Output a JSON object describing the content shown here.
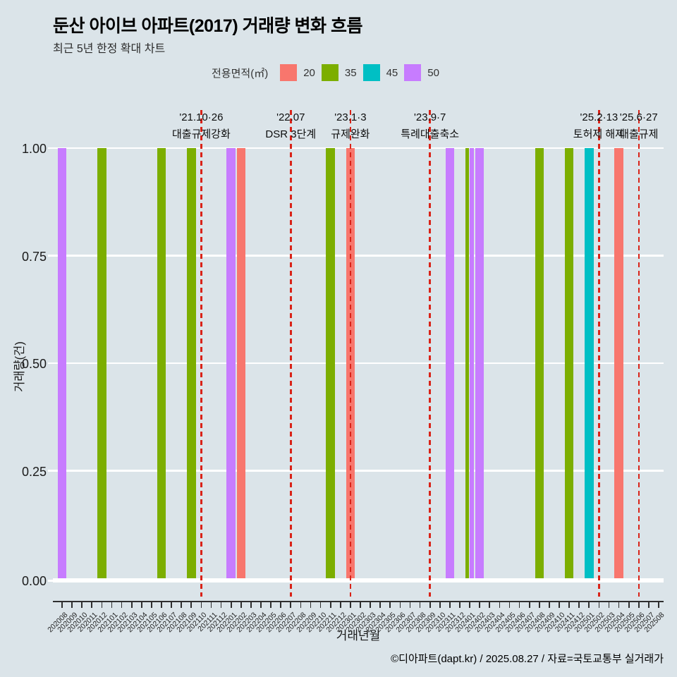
{
  "header": {
    "title": "둔산 아이브 아파트(2017) 거래량 변화 흐름",
    "subtitle": "최근 5년 한정 확대 차트"
  },
  "legend": {
    "title": "전용면적(㎡)",
    "entries": [
      {
        "label": "20",
        "color": "#F8766D"
      },
      {
        "label": "35",
        "color": "#7CAE00"
      },
      {
        "label": "45",
        "color": "#00BFC4"
      },
      {
        "label": "50",
        "color": "#C77CFF"
      }
    ]
  },
  "axes": {
    "xlabel": "거래년월",
    "ylabel": "거래량(건)"
  },
  "footer": {
    "credit": "©디아파트(dapt.kr) / 2025.08.27 / 자료=국토교통부 실거래가"
  },
  "chart_data": {
    "type": "bar",
    "title": "둔산 아이브 아파트(2017) 거래량 변화 흐름",
    "subtitle": "최근 5년 한정 확대 차트",
    "xlabel": "거래년월",
    "ylabel": "거래량(건)",
    "ylim": [
      0,
      1
    ],
    "yticks": [
      "0.00",
      "0.25",
      "0.50",
      "0.75",
      "1.00"
    ],
    "grid": "horizontal-white-major",
    "legend_position": "top",
    "categories": [
      "202008",
      "202009",
      "202010",
      "202011",
      "202012",
      "202101",
      "202102",
      "202103",
      "202104",
      "202105",
      "202106",
      "202107",
      "202108",
      "202109",
      "202110",
      "202111",
      "202112",
      "202201",
      "202202",
      "202203",
      "202204",
      "202205",
      "202206",
      "202207",
      "202208",
      "202209",
      "202210",
      "202211",
      "202212",
      "202301",
      "202302",
      "202303",
      "202304",
      "202305",
      "202306",
      "202307",
      "202308",
      "202309",
      "202310",
      "202311",
      "202312",
      "202401",
      "202402",
      "202403",
      "202404",
      "202405",
      "202406",
      "202407",
      "202408",
      "202409",
      "202410",
      "202411",
      "202412",
      "202501",
      "202502",
      "202503",
      "202504",
      "202505",
      "202506",
      "202507",
      "202508"
    ],
    "bars": [
      {
        "month": "202008",
        "area": "50",
        "value": 1
      },
      {
        "month": "202012",
        "area": "35",
        "value": 1
      },
      {
        "month": "202106",
        "area": "35",
        "value": 1
      },
      {
        "month": "202109",
        "area": "35",
        "value": 1
      },
      {
        "month": "202201",
        "area": "50",
        "value": 1
      },
      {
        "month": "202202",
        "area": "20",
        "value": 1
      },
      {
        "month": "202211",
        "area": "35",
        "value": 1
      },
      {
        "month": "202301",
        "area": "20",
        "value": 1
      },
      {
        "month": "202311",
        "area": "50",
        "value": 1
      },
      {
        "month": "202401",
        "area": "35",
        "value": 1
      },
      {
        "month": "202401",
        "area": "50",
        "value": 1
      },
      {
        "month": "202402",
        "area": "50",
        "value": 1
      },
      {
        "month": "202408",
        "area": "35",
        "value": 1
      },
      {
        "month": "202411",
        "area": "35",
        "value": 1
      },
      {
        "month": "202501",
        "area": "45",
        "value": 1
      },
      {
        "month": "202504",
        "area": "20",
        "value": 1
      }
    ],
    "events": [
      {
        "month": "202110",
        "date": "'21.10·26",
        "label": "대출규제강화"
      },
      {
        "month": "202207",
        "date": "'22.07",
        "label": "DSR 3단계"
      },
      {
        "month": "202301",
        "date": "'23.1·3",
        "label": "규제완화"
      },
      {
        "month": "202309",
        "date": "'23.9·7",
        "label": "특례대출축소"
      },
      {
        "month": "202502",
        "date": "'25.2·13",
        "label": "토허제 해제"
      },
      {
        "month": "202506",
        "date": "'25.6·27",
        "label": "대출규제"
      }
    ]
  }
}
